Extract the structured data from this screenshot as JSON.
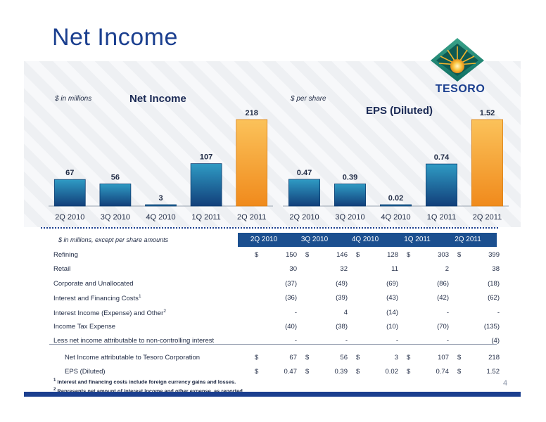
{
  "slide": {
    "title": "Net Income",
    "logo_text": "TESORO",
    "page_number": "4"
  },
  "colors": {
    "title_blue": "#1b3f8f",
    "bar_teal": "#1b7aa8",
    "bar_gold": "#f5a623",
    "table_header": "#1b4f8f"
  },
  "chart_data": [
    {
      "type": "bar",
      "title": "Net Income",
      "unit_label": "$ in millions",
      "categories": [
        "2Q 2010",
        "3Q 2010",
        "4Q 2010",
        "1Q 2011",
        "2Q 2011"
      ],
      "values": [
        67,
        56,
        3,
        107,
        218
      ],
      "value_labels": [
        "67",
        "56",
        "3",
        "107",
        "218"
      ],
      "highlight_index": 4,
      "ylim": [
        0,
        218
      ]
    },
    {
      "type": "bar",
      "title": "EPS (Diluted)",
      "unit_label": "$ per share",
      "categories": [
        "2Q 2010",
        "3Q 2010",
        "4Q 2010",
        "1Q 2011",
        "2Q 2011"
      ],
      "values": [
        0.47,
        0.39,
        0.02,
        0.74,
        1.52
      ],
      "value_labels": [
        "0.47",
        "0.39",
        "0.02",
        "0.74",
        "1.52"
      ],
      "highlight_index": 4,
      "ylim": [
        0,
        1.52
      ]
    }
  ],
  "table": {
    "unit_label": "$ in millions, except per share amounts",
    "columns": [
      "2Q 2010",
      "3Q 2010",
      "4Q 2010",
      "1Q 2011",
      "2Q 2011"
    ],
    "rows": [
      {
        "label": "Refining",
        "values": [
          "150",
          "146",
          "128",
          "303",
          "399"
        ],
        "dollar": true
      },
      {
        "label": "Retail",
        "values": [
          "30",
          "32",
          "11",
          "2",
          "38"
        ]
      },
      {
        "label": "Corporate and Unallocated",
        "values": [
          "(37)",
          "(49)",
          "(69)",
          "(86)",
          "(18)"
        ]
      },
      {
        "label": "Interest and Financing Costs",
        "sup": "1",
        "values": [
          "(36)",
          "(39)",
          "(43)",
          "(42)",
          "(62)"
        ]
      },
      {
        "label": "Interest Income (Expense) and Other",
        "sup": "2",
        "values": [
          "-",
          "4",
          "(14)",
          "-",
          "-"
        ]
      },
      {
        "label": "Income Tax Expense",
        "values": [
          "(40)",
          "(38)",
          "(10)",
          "(70)",
          "(135)"
        ]
      },
      {
        "label": "Less net income attributable to non-controlling interest",
        "values": [
          "-",
          "-",
          "-",
          "-",
          "(4)"
        ]
      },
      {
        "label": "Net Income attributable to Tesoro Corporation",
        "values": [
          "67",
          "56",
          "3",
          "107",
          "218"
        ],
        "dollar": true,
        "indent": true
      },
      {
        "label": "EPS (Diluted)",
        "values": [
          "0.47",
          "0.39",
          "0.02",
          "0.74",
          "1.52"
        ],
        "dollar": true,
        "indent": true
      }
    ]
  },
  "footnotes": [
    {
      "mark": "1",
      "text": " Interest and financing costs include foreign currency gains and losses."
    },
    {
      "mark": "2",
      "text": " Represents net amount of interest income and other expense, as reported."
    }
  ]
}
